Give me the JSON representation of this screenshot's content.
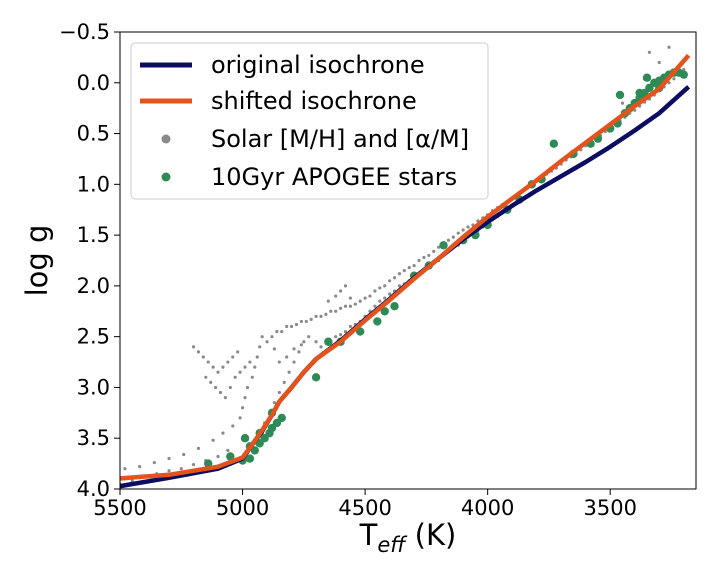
{
  "chart_data": {
    "type": "scatter",
    "xlabel": "T",
    "xlabel_sub": "eff",
    "xlabel_unit": " (K)",
    "ylabel": "log g",
    "xlim": [
      5500,
      3150
    ],
    "ylim": [
      4.0,
      -0.5
    ],
    "x_inverted": true,
    "y_inverted": true,
    "x_ticks": [
      5500,
      5000,
      4500,
      4000,
      3500
    ],
    "x_tick_labels": [
      "5500",
      "5000",
      "4500",
      "4000",
      "3500"
    ],
    "y_ticks": [
      -0.5,
      0.0,
      0.5,
      1.0,
      1.5,
      2.0,
      2.5,
      3.0,
      3.5,
      4.0
    ],
    "y_tick_labels": [
      "−0.5",
      "0.0",
      "0.5",
      "1.0",
      "1.5",
      "2.0",
      "2.5",
      "3.0",
      "3.5",
      "4.0"
    ],
    "grid": false,
    "legend_position": "top-left",
    "series": [
      {
        "name": " original isochrone",
        "kind": "line",
        "color": "#0c0c63",
        "x": [
          5520,
          5300,
          5100,
          5000,
          4960,
          4920,
          4880,
          4850,
          4800,
          4750,
          4700,
          4600,
          4500,
          4400,
          4300,
          4200,
          4100,
          4000,
          3900,
          3800,
          3700,
          3600,
          3500,
          3400,
          3300,
          3180
        ],
        "y": [
          3.98,
          3.89,
          3.8,
          3.7,
          3.56,
          3.43,
          3.27,
          3.14,
          3.0,
          2.85,
          2.72,
          2.54,
          2.33,
          2.13,
          1.92,
          1.73,
          1.54,
          1.37,
          1.21,
          1.06,
          0.92,
          0.78,
          0.63,
          0.47,
          0.3,
          0.04
        ]
      },
      {
        "name": "shifted isochrone",
        "kind": "line",
        "color": "#e4531b",
        "x": [
          5520,
          5300,
          5100,
          5000,
          4960,
          4920,
          4880,
          4850,
          4800,
          4750,
          4700,
          4600,
          4500,
          4400,
          4300,
          4200,
          4100,
          4000,
          3900,
          3800,
          3700,
          3600,
          3500,
          3400,
          3300,
          3180
        ],
        "y": [
          3.9,
          3.86,
          3.78,
          3.69,
          3.56,
          3.42,
          3.27,
          3.14,
          3.0,
          2.85,
          2.72,
          2.55,
          2.34,
          2.14,
          1.93,
          1.73,
          1.52,
          1.32,
          1.14,
          0.96,
          0.77,
          0.59,
          0.41,
          0.23,
          0.06,
          -0.27
        ]
      },
      {
        "name": "Solar [M/H] and [α/M]",
        "kind": "points",
        "color": "#8a8a8a",
        "points": [
          [
            5500,
            3.95
          ],
          [
            5450,
            3.92
          ],
          [
            5400,
            3.88
          ],
          [
            5350,
            3.85
          ],
          [
            5300,
            3.82
          ],
          [
            5250,
            3.8
          ],
          [
            5200,
            3.76
          ],
          [
            5150,
            3.72
          ],
          [
            5100,
            3.68
          ],
          [
            5060,
            3.62
          ],
          [
            5480,
            3.8
          ],
          [
            5420,
            3.78
          ],
          [
            5360,
            3.74
          ],
          [
            5300,
            3.7
          ],
          [
            5240,
            3.66
          ],
          [
            5180,
            3.6
          ],
          [
            5120,
            3.52
          ],
          [
            5080,
            3.45
          ],
          [
            5040,
            3.38
          ],
          [
            5010,
            3.3
          ],
          [
            5000,
            3.2
          ],
          [
            4990,
            3.1
          ],
          [
            4980,
            3.0
          ],
          [
            4960,
            2.9
          ],
          [
            4950,
            2.8
          ],
          [
            4940,
            2.7
          ],
          [
            4930,
            2.6
          ],
          [
            4920,
            2.5
          ],
          [
            4950,
            3.55
          ],
          [
            4930,
            3.45
          ],
          [
            4910,
            3.35
          ],
          [
            4890,
            3.25
          ],
          [
            4870,
            3.15
          ],
          [
            4850,
            3.05
          ],
          [
            4830,
            2.95
          ],
          [
            4810,
            2.85
          ],
          [
            4790,
            2.75
          ],
          [
            4770,
            2.65
          ],
          [
            4750,
            2.55
          ],
          [
            4730,
            2.5
          ],
          [
            5200,
            2.6
          ],
          [
            5180,
            2.65
          ],
          [
            5160,
            2.7
          ],
          [
            5140,
            2.75
          ],
          [
            5120,
            2.8
          ],
          [
            5100,
            2.85
          ],
          [
            5080,
            2.8
          ],
          [
            5060,
            2.75
          ],
          [
            5040,
            2.7
          ],
          [
            5020,
            2.65
          ],
          [
            5150,
            2.9
          ],
          [
            5130,
            2.95
          ],
          [
            5110,
            3.0
          ],
          [
            5090,
            3.05
          ],
          [
            5070,
            3.1
          ],
          [
            5050,
            3.0
          ],
          [
            5030,
            2.9
          ],
          [
            5010,
            2.85
          ],
          [
            4990,
            2.8
          ],
          [
            4970,
            2.75
          ],
          [
            4900,
            2.55
          ],
          [
            4880,
            2.5
          ],
          [
            4860,
            2.45
          ],
          [
            4840,
            2.45
          ],
          [
            4820,
            2.4
          ],
          [
            4800,
            2.4
          ],
          [
            4780,
            2.38
          ],
          [
            4760,
            2.35
          ],
          [
            4740,
            2.35
          ],
          [
            4720,
            2.33
          ],
          [
            4700,
            2.3
          ],
          [
            4680,
            2.3
          ],
          [
            4660,
            2.28
          ],
          [
            4640,
            2.25
          ],
          [
            4620,
            2.25
          ],
          [
            4600,
            2.22
          ],
          [
            4580,
            2.2
          ],
          [
            4560,
            2.2
          ],
          [
            4540,
            2.18
          ],
          [
            4520,
            2.15
          ],
          [
            4700,
            2.55
          ],
          [
            4680,
            2.6
          ],
          [
            4660,
            2.65
          ],
          [
            4640,
            2.55
          ],
          [
            4620,
            2.5
          ],
          [
            4600,
            2.48
          ],
          [
            4580,
            2.45
          ],
          [
            4560,
            2.4
          ],
          [
            4540,
            2.38
          ],
          [
            4520,
            2.35
          ],
          [
            4500,
            2.12
          ],
          [
            4480,
            2.1
          ],
          [
            4460,
            2.05
          ],
          [
            4440,
            2.02
          ],
          [
            4420,
            2.0
          ],
          [
            4400,
            1.95
          ],
          [
            4380,
            1.92
          ],
          [
            4360,
            1.88
          ],
          [
            4340,
            1.85
          ],
          [
            4320,
            1.82
          ],
          [
            4500,
            2.3
          ],
          [
            4480,
            2.25
          ],
          [
            4460,
            2.2
          ],
          [
            4440,
            2.15
          ],
          [
            4420,
            2.12
          ],
          [
            4400,
            2.08
          ],
          [
            4380,
            2.05
          ],
          [
            4360,
            2.0
          ],
          [
            4340,
            1.98
          ],
          [
            4320,
            1.95
          ],
          [
            4300,
            1.8
          ],
          [
            4280,
            1.75
          ],
          [
            4260,
            1.72
          ],
          [
            4240,
            1.7
          ],
          [
            4220,
            1.66
          ],
          [
            4200,
            1.62
          ],
          [
            4180,
            1.58
          ],
          [
            4160,
            1.55
          ],
          [
            4140,
            1.52
          ],
          [
            4120,
            1.48
          ],
          [
            4300,
            1.92
          ],
          [
            4280,
            1.88
          ],
          [
            4260,
            1.85
          ],
          [
            4240,
            1.82
          ],
          [
            4220,
            1.78
          ],
          [
            4200,
            1.75
          ],
          [
            4180,
            1.7
          ],
          [
            4160,
            1.66
          ],
          [
            4140,
            1.62
          ],
          [
            4120,
            1.6
          ],
          [
            4100,
            1.45
          ],
          [
            4080,
            1.42
          ],
          [
            4060,
            1.4
          ],
          [
            4040,
            1.36
          ],
          [
            4020,
            1.33
          ],
          [
            4000,
            1.3
          ],
          [
            3980,
            1.26
          ],
          [
            3960,
            1.23
          ],
          [
            3940,
            1.2
          ],
          [
            3920,
            1.17
          ],
          [
            4100,
            1.56
          ],
          [
            4080,
            1.52
          ],
          [
            4060,
            1.5
          ],
          [
            4040,
            1.46
          ],
          [
            4020,
            1.42
          ],
          [
            4000,
            1.38
          ],
          [
            3980,
            1.35
          ],
          [
            3960,
            1.32
          ],
          [
            3940,
            1.28
          ],
          [
            3920,
            1.25
          ],
          [
            3900,
            1.14
          ],
          [
            3880,
            1.1
          ],
          [
            3860,
            1.07
          ],
          [
            3840,
            1.04
          ],
          [
            3820,
            1.0
          ],
          [
            3800,
            0.97
          ],
          [
            3780,
            0.94
          ],
          [
            3760,
            0.9
          ],
          [
            3740,
            0.87
          ],
          [
            3720,
            0.84
          ],
          [
            3700,
            0.8
          ],
          [
            3680,
            0.76
          ],
          [
            3660,
            0.73
          ],
          [
            3640,
            0.7
          ],
          [
            3620,
            0.66
          ],
          [
            3600,
            0.62
          ],
          [
            3580,
            0.58
          ],
          [
            3560,
            0.55
          ],
          [
            3540,
            0.52
          ],
          [
            3520,
            0.48
          ],
          [
            3500,
            0.44
          ],
          [
            3480,
            0.4
          ],
          [
            3460,
            0.37
          ],
          [
            3440,
            0.34
          ],
          [
            3420,
            0.3
          ],
          [
            3400,
            0.27
          ],
          [
            3380,
            0.23
          ],
          [
            3360,
            0.19
          ],
          [
            3340,
            0.16
          ],
          [
            3320,
            0.12
          ],
          [
            3300,
            0.08
          ],
          [
            3280,
            0.04
          ],
          [
            3260,
            0.0
          ],
          [
            3240,
            -0.04
          ],
          [
            3220,
            -0.08
          ],
          [
            3200,
            -0.13
          ],
          [
            3300,
            -0.2
          ],
          [
            3340,
            -0.3
          ],
          [
            3260,
            -0.35
          ],
          [
            3450,
            0.2
          ],
          [
            4850,
            2.75
          ],
          [
            4820,
            2.7
          ],
          [
            4790,
            2.62
          ],
          [
            4760,
            2.58
          ],
          [
            4870,
            2.62
          ],
          [
            4600,
            2.05
          ],
          [
            4580,
            2.0
          ],
          [
            4560,
            2.12
          ],
          [
            4620,
            2.1
          ],
          [
            4650,
            2.15
          ]
        ]
      },
      {
        "name": "10Gyr APOGEE stars",
        "kind": "points",
        "color": "#2e8b57",
        "points": [
          [
            5140,
            3.75
          ],
          [
            5050,
            3.68
          ],
          [
            5000,
            3.72
          ],
          [
            4970,
            3.7
          ],
          [
            4950,
            3.62
          ],
          [
            4930,
            3.55
          ],
          [
            4910,
            3.5
          ],
          [
            4880,
            3.4
          ],
          [
            4860,
            3.35
          ],
          [
            4840,
            3.3
          ],
          [
            4990,
            3.5
          ],
          [
            4970,
            3.58
          ],
          [
            4930,
            3.45
          ],
          [
            4890,
            3.45
          ],
          [
            4880,
            3.25
          ],
          [
            4700,
            2.9
          ],
          [
            4650,
            2.55
          ],
          [
            4600,
            2.55
          ],
          [
            4520,
            2.45
          ],
          [
            4450,
            2.35
          ],
          [
            4420,
            2.25
          ],
          [
            4380,
            2.2
          ],
          [
            4300,
            1.9
          ],
          [
            4240,
            1.8
          ],
          [
            4180,
            1.6
          ],
          [
            4100,
            1.55
          ],
          [
            4050,
            1.5
          ],
          [
            4000,
            1.4
          ],
          [
            3920,
            1.25
          ],
          [
            3870,
            1.15
          ],
          [
            3820,
            1.0
          ],
          [
            3780,
            0.95
          ],
          [
            3730,
            0.6
          ],
          [
            3650,
            0.7
          ],
          [
            3580,
            0.6
          ],
          [
            3550,
            0.55
          ],
          [
            3500,
            0.45
          ],
          [
            3470,
            0.4
          ],
          [
            3440,
            0.3
          ],
          [
            3420,
            0.25
          ],
          [
            3400,
            0.2
          ],
          [
            3380,
            0.15
          ],
          [
            3360,
            0.1
          ],
          [
            3340,
            0.05
          ],
          [
            3320,
            0.0
          ],
          [
            3300,
            -0.02
          ],
          [
            3280,
            -0.05
          ],
          [
            3260,
            -0.08
          ],
          [
            3240,
            -0.1
          ],
          [
            3220,
            -0.1
          ],
          [
            3200,
            -0.08
          ],
          [
            3350,
            -0.05
          ],
          [
            3300,
            0.05
          ],
          [
            3380,
            0.1
          ],
          [
            3460,
            0.12
          ]
        ]
      }
    ]
  }
}
